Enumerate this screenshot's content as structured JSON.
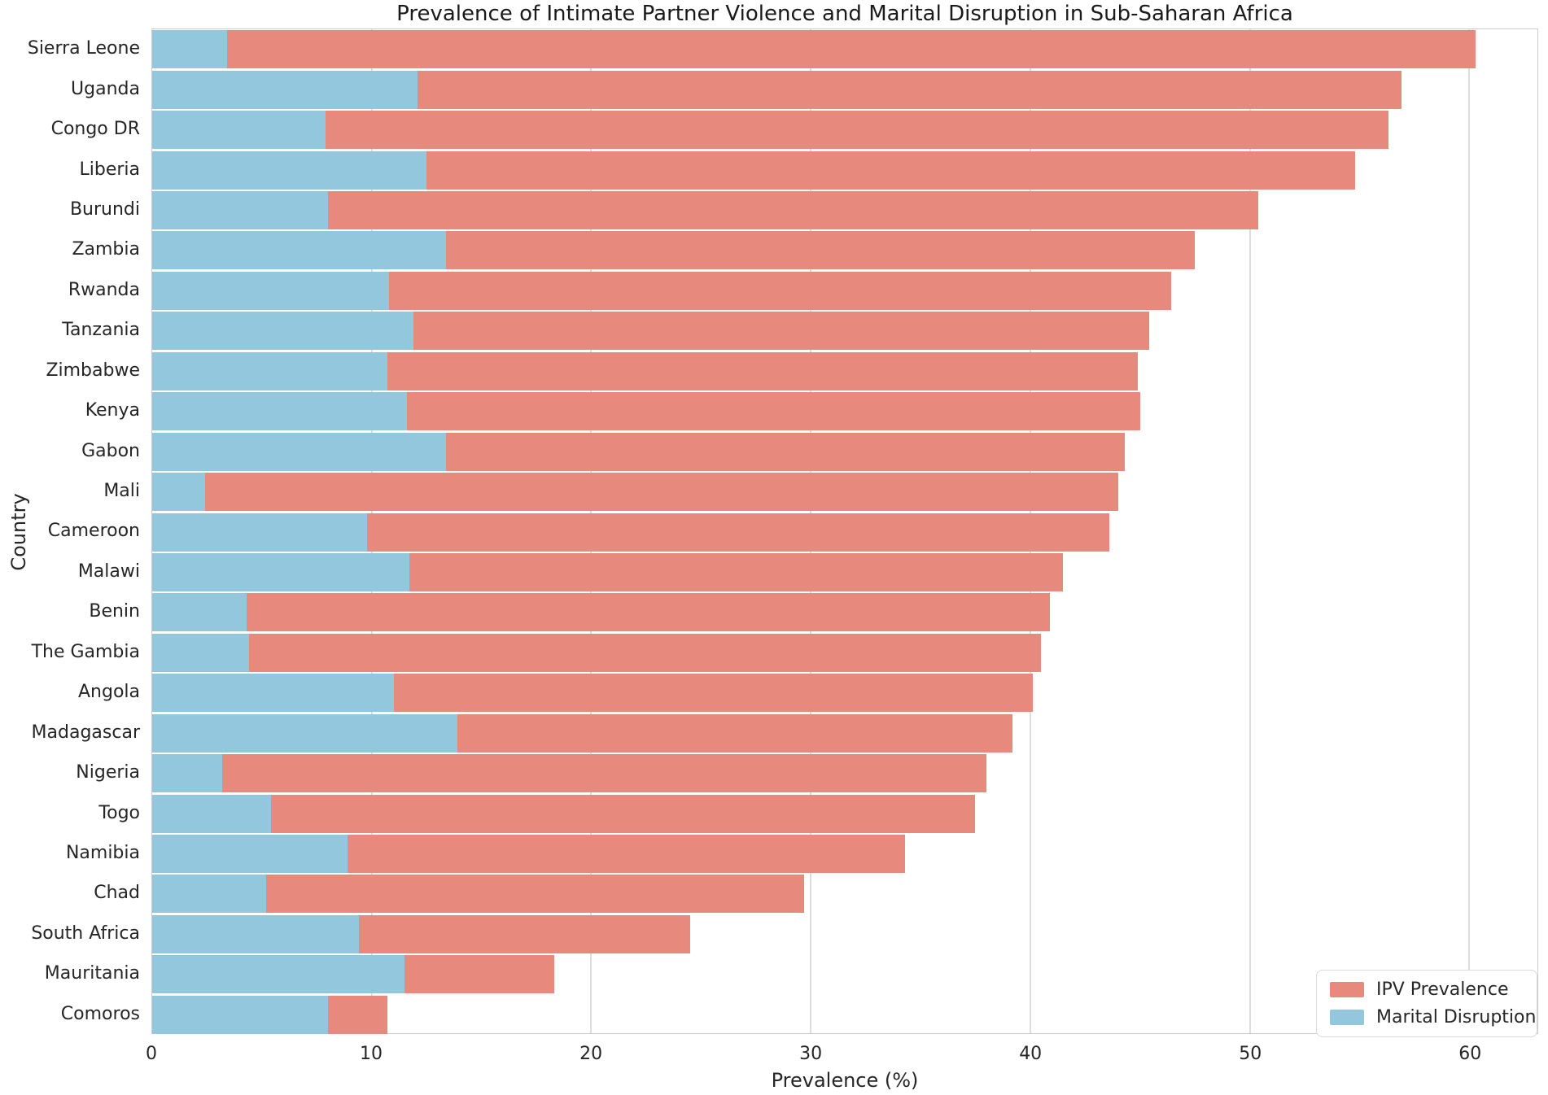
{
  "chart_data": {
    "type": "bar",
    "orientation": "horizontal",
    "title": "Prevalence of Intimate Partner Violence and Marital Disruption in Sub-Saharan Africa",
    "xlabel": "Prevalence (%)",
    "ylabel": "Country",
    "xlim": [
      0,
      63.1
    ],
    "xticks": [
      0,
      10,
      20,
      30,
      40,
      50,
      60
    ],
    "grid": true,
    "legend_position": "lower right",
    "colors": {
      "ipv": "#E8897E",
      "marital": "#93C7DD",
      "gridline": "#DDDDDD",
      "spine": "#CCCCCC",
      "text": "#262626"
    },
    "legend": [
      {
        "label": "IPV Prevalence",
        "color": "#E8897E"
      },
      {
        "label": "Marital Disruption",
        "color": "#93C7DD"
      }
    ],
    "categories": [
      "Sierra Leone",
      "Uganda",
      "Congo DR",
      "Liberia",
      "Burundi",
      "Zambia",
      "Rwanda",
      "Tanzania",
      "Zimbabwe",
      "Kenya",
      "Gabon",
      "Mali",
      "Cameroon",
      "Malawi",
      "Benin",
      "The Gambia",
      "Angola",
      "Madagascar",
      "Nigeria",
      "Togo",
      "Namibia",
      "Chad",
      "South Africa",
      "Mauritania",
      "Comoros"
    ],
    "series": [
      {
        "name": "IPV Prevalence",
        "color": "#E8897E",
        "values": [
          60.3,
          56.9,
          56.3,
          54.8,
          50.4,
          47.5,
          46.4,
          45.4,
          44.9,
          45.0,
          44.3,
          44.0,
          43.6,
          41.5,
          40.9,
          40.5,
          40.1,
          39.2,
          38.0,
          37.5,
          34.3,
          29.7,
          24.5,
          18.3,
          10.7
        ]
      },
      {
        "name": "Marital Disruption",
        "color": "#93C7DD",
        "values": [
          3.4,
          12.1,
          7.9,
          12.5,
          8.0,
          13.4,
          10.8,
          11.9,
          10.7,
          11.6,
          13.4,
          2.4,
          9.8,
          11.7,
          4.3,
          4.4,
          11.0,
          13.9,
          3.2,
          5.4,
          8.9,
          5.2,
          9.4,
          11.5,
          8.0
        ]
      }
    ]
  }
}
